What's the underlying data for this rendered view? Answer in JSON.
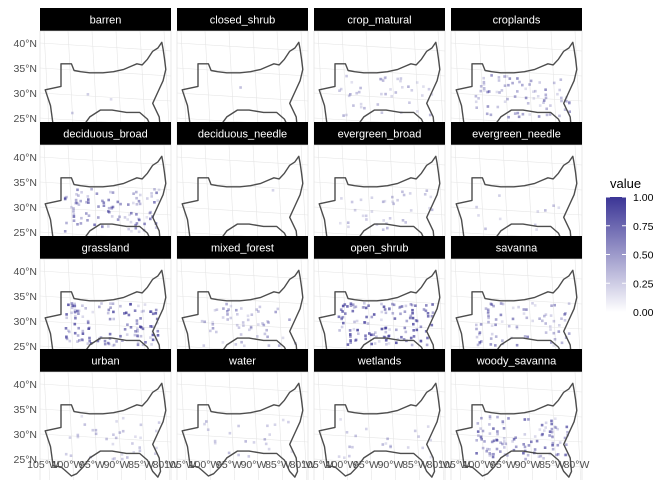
{
  "chart_data": {
    "type": "heatmap",
    "facet_labels": [
      "barren",
      "closed_shrub",
      "crop_matural",
      "croplands",
      "deciduous_broad",
      "deciduous_needle",
      "evergreen_broad",
      "evergreen_needle",
      "grassland",
      "mixed_forest",
      "open_shrub",
      "savanna",
      "urban",
      "water",
      "wetlands",
      "woody_savanna"
    ],
    "y_ticks": [
      "40°N",
      "35°N",
      "30°N",
      "25°N"
    ],
    "x_ticks": [
      "105°W",
      "100°W",
      "95°W",
      "90°W",
      "85°W",
      "80°W"
    ],
    "legend": {
      "title": "value",
      "ticks": [
        "1.00",
        "0.75",
        "0.50",
        "0.25",
        "0.00"
      ],
      "range": [
        0,
        1
      ],
      "color_low": "#ffffff",
      "color_high": "#3b3596"
    },
    "coverage_by_facet": {
      "barren": 0.02,
      "closed_shrub": 0.01,
      "crop_matural": 0.3,
      "croplands": 0.55,
      "deciduous_broad": 0.7,
      "deciduous_needle": 0.01,
      "evergreen_broad": 0.25,
      "evergreen_needle": 0.08,
      "grassland": 0.85,
      "mixed_forest": 0.4,
      "open_shrub": 0.9,
      "savanna": 0.55,
      "urban": 0.25,
      "water": 0.15,
      "wetlands": 0.15,
      "woody_savanna": 0.75
    }
  }
}
